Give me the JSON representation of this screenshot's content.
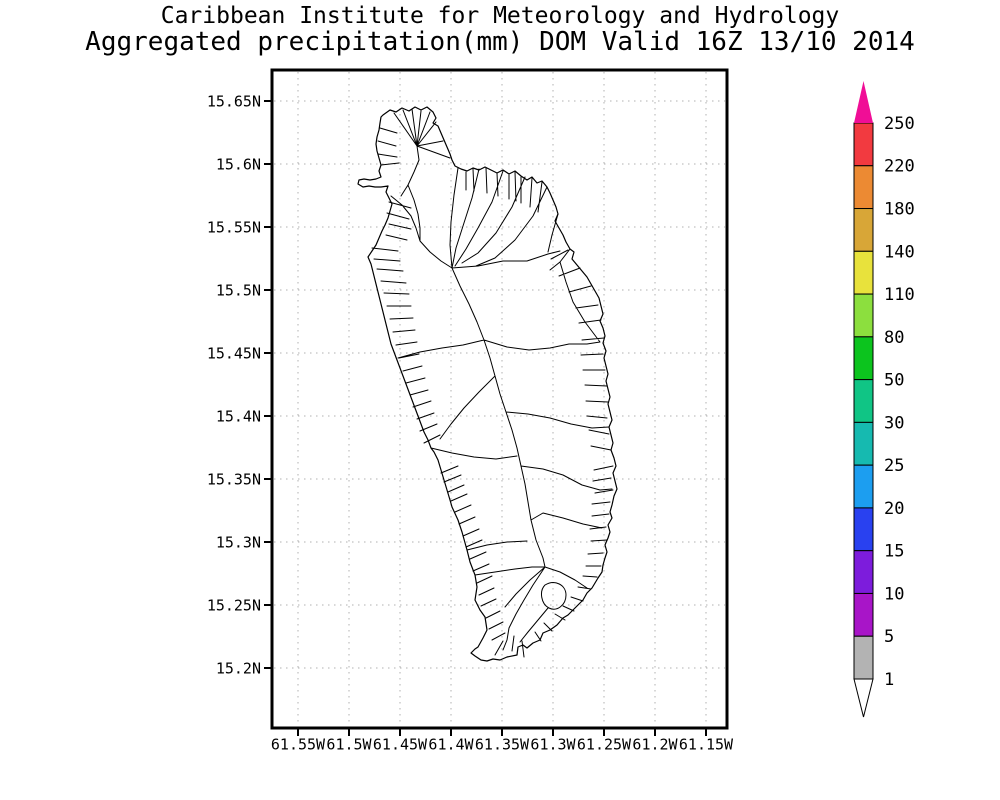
{
  "title": {
    "line1": "Caribbean Institute for Meteorology and Hydrology",
    "line2": "Aggregated precipitation(mm) DOM Valid 16Z 13/10 2014"
  },
  "map": {
    "y_axis_labels": [
      "15.65N",
      "15.6N",
      "15.55N",
      "15.5N",
      "15.45N",
      "15.4N",
      "15.35N",
      "15.3N",
      "15.25N",
      "15.2N"
    ],
    "x_axis_labels": [
      "61.55W",
      "61.5W",
      "61.45W",
      "61.4W",
      "61.35W",
      "61.3W",
      "61.25W",
      "61.2W",
      "61.15W"
    ],
    "grid_color": "#b0b0b0",
    "frame_color": "#000000",
    "outline_color": "#000000",
    "region_name": "Dominica watershed boundaries"
  },
  "colorbar": {
    "labels_top_to_bottom": [
      "250",
      "220",
      "180",
      "140",
      "110",
      "80",
      "50",
      "30",
      "25",
      "20",
      "15",
      "10",
      "5",
      "1"
    ],
    "cell_colors_top_to_bottom": [
      "#f23a40",
      "#ec8a33",
      "#d8a637",
      "#e8e23c",
      "#8cdf3e",
      "#0cc41e",
      "#10c585",
      "#16bab0",
      "#1c9ef0",
      "#2941f0",
      "#7d1cdc",
      "#a815c8",
      "#b3b3b3"
    ],
    "arrow_over_color": "#f00e96",
    "arrow_under_color": "#ffffff",
    "border_color": "#000000"
  },
  "chart_data": {
    "type": "map",
    "title": "Caribbean Institute for Meteorology and Hydrology",
    "subtitle": "Aggregated precipitation(mm) DOM Valid 16Z 13/10 2014",
    "units": "mm",
    "region": "DOM",
    "valid_time": "16Z 13/10 2014",
    "lat_ticks": [
      "15.65N",
      "15.6N",
      "15.55N",
      "15.5N",
      "15.45N",
      "15.4N",
      "15.35N",
      "15.3N",
      "15.25N",
      "15.2N"
    ],
    "lon_ticks": [
      "61.55W",
      "61.5W",
      "61.45W",
      "61.4W",
      "61.35W",
      "61.3W",
      "61.25W",
      "61.2W",
      "61.15W"
    ],
    "scale_levels_low_to_high": [
      1,
      5,
      10,
      15,
      20,
      25,
      30,
      50,
      80,
      110,
      140,
      180,
      220,
      250
    ],
    "scale_colors_low_to_high": [
      "#b3b3b3",
      "#a815c8",
      "#7d1cdc",
      "#2941f0",
      "#1c9ef0",
      "#16bab0",
      "#10c585",
      "#0cc41e",
      "#8cdf3e",
      "#e8e23c",
      "#d8a637",
      "#ec8a33",
      "#f23a40"
    ],
    "over_color": "#f00e96",
    "under_color": "#ffffff",
    "grid": true,
    "legend_position": "right"
  }
}
